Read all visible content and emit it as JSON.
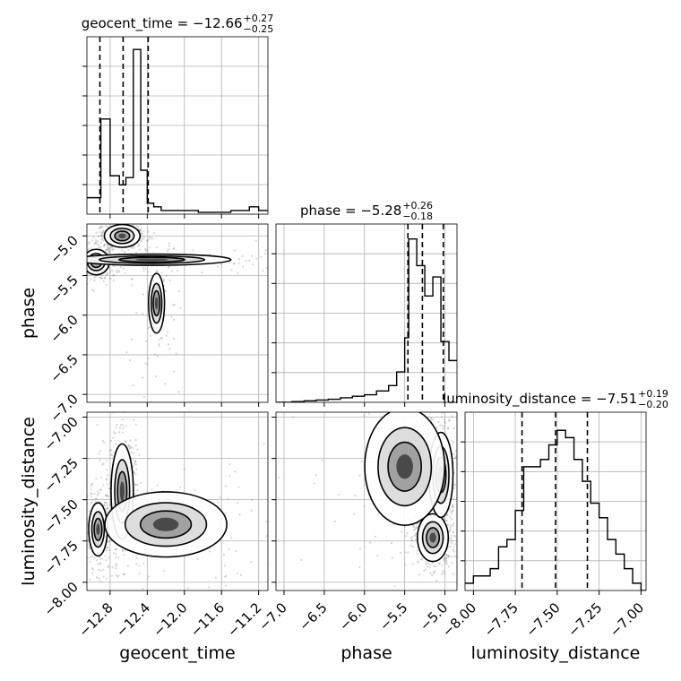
{
  "chart_data": {
    "type": "corner",
    "parameters": [
      "geocent_time",
      "phase",
      "luminosity_distance"
    ],
    "titles": [
      {
        "param": "geocent_time",
        "text": "geocent_time = −12.66",
        "plus": "+0.27",
        "minus": "−0.25"
      },
      {
        "param": "phase",
        "text": "phase = −5.28",
        "plus": "+0.26",
        "minus": "−0.18"
      },
      {
        "param": "luminosity_distance",
        "text": "luminosity_distance = −7.51",
        "plus": "+0.19",
        "minus": "−0.20"
      }
    ],
    "ranges": {
      "geocent_time": [
        -13.05,
        -11.1
      ],
      "phase": [
        -7.1,
        -4.85
      ],
      "luminosity_distance": [
        -8.05,
        -6.97
      ]
    },
    "ticks": {
      "geocent_time": [
        "−12.8",
        "−12.4",
        "−12.0",
        "−11.6",
        "−11.2"
      ],
      "phase": [
        "−7.0",
        "−6.5",
        "−6.0",
        "−5.5",
        "−5.0"
      ],
      "luminosity_distance": [
        "−8.00",
        "−7.75",
        "−7.50",
        "−7.25",
        "−7.00"
      ]
    },
    "tick_values": {
      "geocent_time": [
        -12.8,
        -12.4,
        -12.0,
        -11.6,
        -11.2
      ],
      "phase": [
        -7.0,
        -6.5,
        -6.0,
        -5.5,
        -5.0
      ],
      "luminosity_distance": [
        -8.0,
        -7.75,
        -7.5,
        -7.25,
        -7.0
      ]
    },
    "quantiles": {
      "geocent_time": [
        -12.91,
        -12.66,
        -12.39
      ],
      "phase": [
        -5.46,
        -5.28,
        -5.02
      ],
      "luminosity_distance": [
        -7.71,
        -7.51,
        -7.32
      ]
    },
    "histograms": {
      "geocent_time": {
        "edges": [
          -13.05,
          -12.9,
          -12.8,
          -12.7,
          -12.63,
          -12.55,
          -12.47,
          -12.4,
          -12.33,
          -12.25,
          -12.15,
          -12.0,
          -11.85,
          -11.7,
          -11.5,
          -11.3,
          -11.2,
          -11.1
        ],
        "counts": [
          9,
          52,
          21,
          16,
          20,
          90,
          24,
          6,
          4,
          2,
          2,
          2,
          1,
          1,
          2,
          4,
          2
        ]
      },
      "phase": {
        "edges": [
          -7.1,
          -6.9,
          -6.75,
          -6.6,
          -6.45,
          -6.3,
          -6.15,
          -6.0,
          -5.85,
          -5.7,
          -5.6,
          -5.5,
          -5.45,
          -5.35,
          -5.25,
          -5.15,
          -5.05,
          -4.95,
          -4.85
        ],
        "counts": [
          0,
          1,
          2,
          3,
          4,
          6,
          8,
          10,
          15,
          22,
          40,
          85,
          215,
          180,
          140,
          165,
          80,
          55
        ]
      },
      "luminosity_distance": {
        "edges": [
          -8.05,
          -8.0,
          -7.9,
          -7.85,
          -7.8,
          -7.75,
          -7.7,
          -7.65,
          -7.6,
          -7.55,
          -7.5,
          -7.45,
          -7.4,
          -7.35,
          -7.3,
          -7.25,
          -7.2,
          -7.15,
          -7.1,
          -7.05,
          -7.0,
          -6.97
        ],
        "counts": [
          1,
          2,
          3,
          6,
          7,
          11,
          17,
          17,
          18,
          20,
          22,
          21,
          18,
          15,
          12,
          10,
          7,
          5,
          3,
          1,
          0
        ]
      }
    },
    "hist_max": {
      "geocent_time": 95,
      "phase": 230,
      "luminosity_distance": 24
    },
    "density_peaks": {
      "geocent_time|phase": [
        {
          "x": -12.67,
          "y": -5.0,
          "sx": 0.08,
          "sy": 0.06,
          "w": 1.0
        },
        {
          "x": -12.95,
          "y": -5.33,
          "sx": 0.07,
          "sy": 0.08,
          "w": 0.7
        },
        {
          "x": -12.35,
          "y": -5.3,
          "sx": 0.6,
          "sy": 0.05,
          "w": 0.35
        },
        {
          "x": -12.3,
          "y": -5.85,
          "sx": 0.08,
          "sy": 0.35,
          "w": 0.2
        }
      ],
      "geocent_time|luminosity_distance": [
        {
          "x": -12.67,
          "y": -7.45,
          "sx": 0.05,
          "sy": 0.12,
          "w": 1.0
        },
        {
          "x": -12.93,
          "y": -7.68,
          "sx": 0.05,
          "sy": 0.08,
          "w": 0.7
        },
        {
          "x": -12.2,
          "y": -7.65,
          "sx": 0.5,
          "sy": 0.15,
          "w": 0.3
        }
      ],
      "phase|luminosity_distance": [
        {
          "x": -5.15,
          "y": -7.73,
          "sx": 0.08,
          "sy": 0.06,
          "w": 1.0
        },
        {
          "x": -5.05,
          "y": -7.35,
          "sx": 0.07,
          "sy": 0.12,
          "w": 0.8
        },
        {
          "x": -5.5,
          "y": -7.3,
          "sx": 0.35,
          "sy": 0.25,
          "w": 0.35
        }
      ]
    },
    "scatter_color": "#8a8a8a",
    "grid": true
  }
}
